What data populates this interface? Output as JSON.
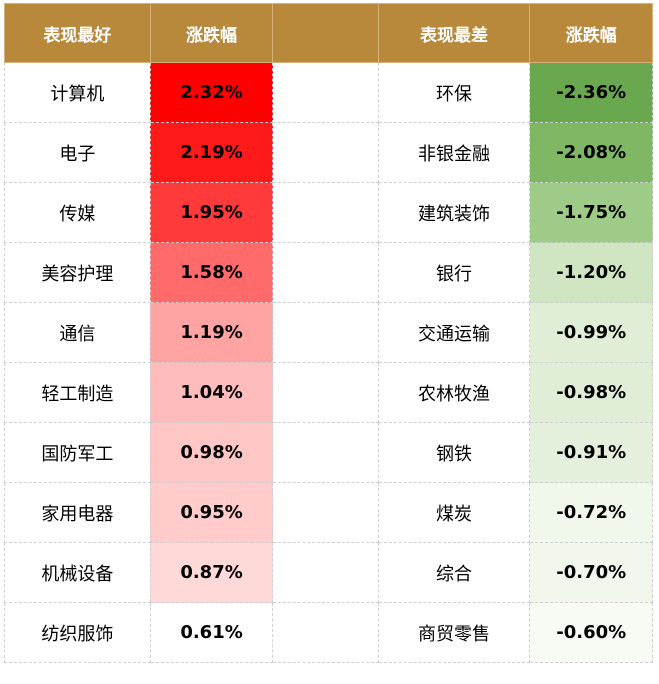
{
  "chart_data": {
    "type": "table",
    "columns": [
      "表现最好",
      "涨跌幅",
      "",
      "表现最差",
      "涨跌幅"
    ],
    "best": [
      {
        "name": "计算机",
        "change": "2.32%",
        "value": 2.32,
        "color": "#ff0000"
      },
      {
        "name": "电子",
        "change": "2.19%",
        "value": 2.19,
        "color": "#ff1a1a"
      },
      {
        "name": "传媒",
        "change": "1.95%",
        "value": 1.95,
        "color": "#ff3a3a"
      },
      {
        "name": "美容护理",
        "change": "1.58%",
        "value": 1.58,
        "color": "#ff6a6a"
      },
      {
        "name": "通信",
        "change": "1.19%",
        "value": 1.19,
        "color": "#ffa3a3"
      },
      {
        "name": "轻工制造",
        "change": "1.04%",
        "value": 1.04,
        "color": "#ffbcbc"
      },
      {
        "name": "国防军工",
        "change": "0.98%",
        "value": 0.98,
        "color": "#ffc6c6"
      },
      {
        "name": "家用电器",
        "change": "0.95%",
        "value": 0.95,
        "color": "#ffcbcb"
      },
      {
        "name": "机械设备",
        "change": "0.87%",
        "value": 0.87,
        "color": "#ffd8d8"
      },
      {
        "name": "纺织服饰",
        "change": "0.61%",
        "value": 0.61,
        "color": "#ffffff"
      }
    ],
    "worst": [
      {
        "name": "环保",
        "change": "-2.36%",
        "value": -2.36,
        "color": "#6aa84f"
      },
      {
        "name": "非银金融",
        "change": "-2.08%",
        "value": -2.08,
        "color": "#7fb765"
      },
      {
        "name": "建筑装饰",
        "change": "-1.75%",
        "value": -1.75,
        "color": "#9fcb88"
      },
      {
        "name": "银行",
        "change": "-1.20%",
        "value": -1.2,
        "color": "#d0e6c3"
      },
      {
        "name": "交通运输",
        "change": "-0.99%",
        "value": -0.99,
        "color": "#e0eed7"
      },
      {
        "name": "农林牧渔",
        "change": "-0.98%",
        "value": -0.98,
        "color": "#e0eed7"
      },
      {
        "name": "钢铁",
        "change": "-0.91%",
        "value": -0.91,
        "color": "#e4f0dc"
      },
      {
        "name": "煤炭",
        "change": "-0.72%",
        "value": -0.72,
        "color": "#f0f7eb"
      },
      {
        "name": "综合",
        "change": "-0.70%",
        "value": -0.7,
        "color": "#f1f7ec"
      },
      {
        "name": "商贸零售",
        "change": "-0.60%",
        "value": -0.6,
        "color": "#f7fbf4"
      }
    ],
    "colors": {
      "header_bg": "#b8893a",
      "header_text": "#ffffff"
    }
  }
}
